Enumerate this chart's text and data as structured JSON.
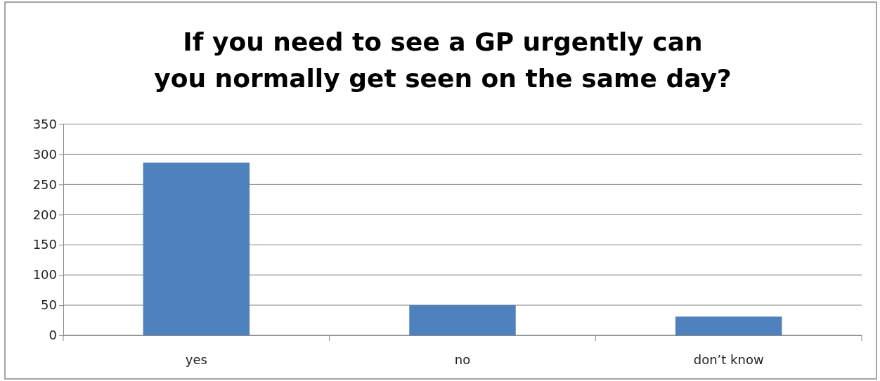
{
  "chart_data": {
    "type": "bar",
    "title": "If you need to see a GP urgently can you normally get seen on the same day?",
    "categories": [
      "yes",
      "no",
      "don’t know"
    ],
    "values": [
      286,
      50,
      31
    ],
    "color": "#4f81bd",
    "ylim": [
      0,
      350
    ],
    "yticks": [
      0,
      50,
      100,
      150,
      200,
      250,
      300,
      350
    ],
    "grid": "y"
  }
}
